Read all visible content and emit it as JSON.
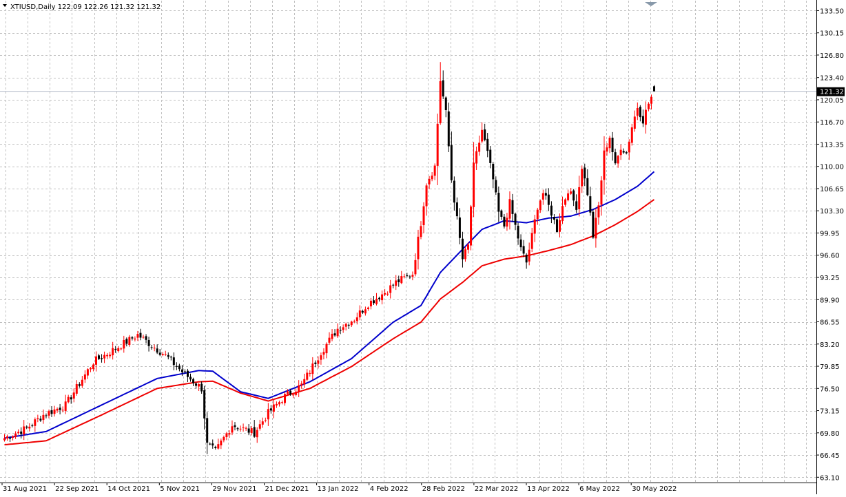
{
  "chart_data": {
    "type": "candlestick",
    "symbol": "XTIUSD",
    "timeframe": "Daily",
    "header": "XTIUSD,Daily  122.09 122.26 121.32 121.32",
    "ohlc_current": {
      "open": 122.09,
      "high": 122.26,
      "low": 121.32,
      "close": 121.32
    },
    "current_price_label": "121.32",
    "y_ticks": [
      "133.50",
      "130.15",
      "126.80",
      "123.40",
      "120.05",
      "116.70",
      "113.35",
      "110.00",
      "106.65",
      "103.30",
      "99.95",
      "96.60",
      "93.25",
      "89.90",
      "86.55",
      "83.20",
      "79.85",
      "76.50",
      "73.15",
      "69.80",
      "66.45",
      "63.10"
    ],
    "ylim": [
      62.3,
      135.0
    ],
    "x_ticks": [
      "31 Aug 2021",
      "22 Sep 2021",
      "14 Oct 2021",
      "5 Nov 2021",
      "29 Nov 2021",
      "21 Dec 2021",
      "13 Jan 2022",
      "4 Feb 2022",
      "28 Feb 2022",
      "22 Mar 2022",
      "13 Apr 2022",
      "6 May 2022",
      "30 May 2022"
    ],
    "grid": true,
    "colors": {
      "up": "#ff0000",
      "down": "#000000",
      "ma_fast": "#0000cc",
      "ma_slow": "#ee0000",
      "grid": "#c0c0c0",
      "price_line": "#b0b8c8",
      "price_tag_bg": "#000000"
    },
    "close_anchors": [
      [
        0,
        69.0
      ],
      [
        8,
        70.5
      ],
      [
        14,
        72.5
      ],
      [
        22,
        74.0
      ],
      [
        32,
        80.5
      ],
      [
        40,
        82.5
      ],
      [
        48,
        84.6
      ],
      [
        53,
        83.0
      ],
      [
        58,
        81.5
      ],
      [
        64,
        79.0
      ],
      [
        71,
        76.5
      ],
      [
        73,
        68.0
      ],
      [
        76,
        67.0
      ],
      [
        82,
        71.0
      ],
      [
        90,
        69.8
      ],
      [
        95,
        72.8
      ],
      [
        101,
        75.3
      ],
      [
        107,
        77.0
      ],
      [
        114,
        82.0
      ],
      [
        120,
        85.5
      ],
      [
        126,
        87.0
      ],
      [
        131,
        89.3
      ],
      [
        137,
        91.0
      ],
      [
        141,
        92.5
      ],
      [
        147,
        93.8
      ],
      [
        150,
        101.5
      ],
      [
        152,
        107.5
      ],
      [
        155,
        110.0
      ],
      [
        157,
        123.0
      ],
      [
        159,
        118.0
      ],
      [
        161,
        108.0
      ],
      [
        163,
        102.0
      ],
      [
        165,
        96.0
      ],
      [
        167,
        98.0
      ],
      [
        169,
        110.0
      ],
      [
        172,
        115.5
      ],
      [
        174,
        112.0
      ],
      [
        176,
        108.0
      ],
      [
        178,
        103.0
      ],
      [
        180,
        101.0
      ],
      [
        182,
        104.5
      ],
      [
        184,
        101.0
      ],
      [
        186,
        97.5
      ],
      [
        188,
        95.5
      ],
      [
        190,
        99.5
      ],
      [
        192,
        104.0
      ],
      [
        194,
        106.0
      ],
      [
        197,
        103.0
      ],
      [
        199,
        100.5
      ],
      [
        201,
        104.0
      ],
      [
        203,
        106.5
      ],
      [
        206,
        104.0
      ],
      [
        208,
        110.0
      ],
      [
        210,
        106.0
      ],
      [
        212,
        99.5
      ],
      [
        214,
        104.0
      ],
      [
        216,
        112.0
      ],
      [
        218,
        114.5
      ],
      [
        220,
        110.0
      ],
      [
        222,
        113.0
      ],
      [
        224,
        112.0
      ],
      [
        226,
        116.0
      ],
      [
        228,
        119.0
      ],
      [
        230,
        117.0
      ],
      [
        232,
        119.5
      ],
      [
        234,
        121.32
      ]
    ],
    "ma_fast_anchors": [
      [
        0,
        69.0
      ],
      [
        15,
        70.0
      ],
      [
        35,
        74.0
      ],
      [
        55,
        78.0
      ],
      [
        70,
        79.2
      ],
      [
        75,
        79.1
      ],
      [
        85,
        76.0
      ],
      [
        95,
        75.0
      ],
      [
        110,
        77.5
      ],
      [
        125,
        81.0
      ],
      [
        140,
        86.5
      ],
      [
        150,
        89.0
      ],
      [
        157,
        94.0
      ],
      [
        165,
        97.5
      ],
      [
        172,
        100.5
      ],
      [
        180,
        101.8
      ],
      [
        188,
        101.5
      ],
      [
        196,
        102.2
      ],
      [
        204,
        102.5
      ],
      [
        212,
        103.5
      ],
      [
        220,
        105.0
      ],
      [
        228,
        107.0
      ],
      [
        234,
        109.2
      ]
    ],
    "ma_slow_anchors": [
      [
        0,
        68.0
      ],
      [
        15,
        68.6
      ],
      [
        35,
        72.5
      ],
      [
        55,
        76.5
      ],
      [
        70,
        77.5
      ],
      [
        75,
        77.6
      ],
      [
        85,
        75.8
      ],
      [
        95,
        74.6
      ],
      [
        110,
        76.5
      ],
      [
        125,
        79.8
      ],
      [
        140,
        84.0
      ],
      [
        150,
        86.5
      ],
      [
        157,
        90.0
      ],
      [
        165,
        92.5
      ],
      [
        172,
        95.0
      ],
      [
        180,
        96.0
      ],
      [
        188,
        96.5
      ],
      [
        196,
        97.3
      ],
      [
        204,
        98.2
      ],
      [
        212,
        99.5
      ],
      [
        220,
        101.2
      ],
      [
        228,
        103.2
      ],
      [
        234,
        105.0
      ]
    ]
  }
}
